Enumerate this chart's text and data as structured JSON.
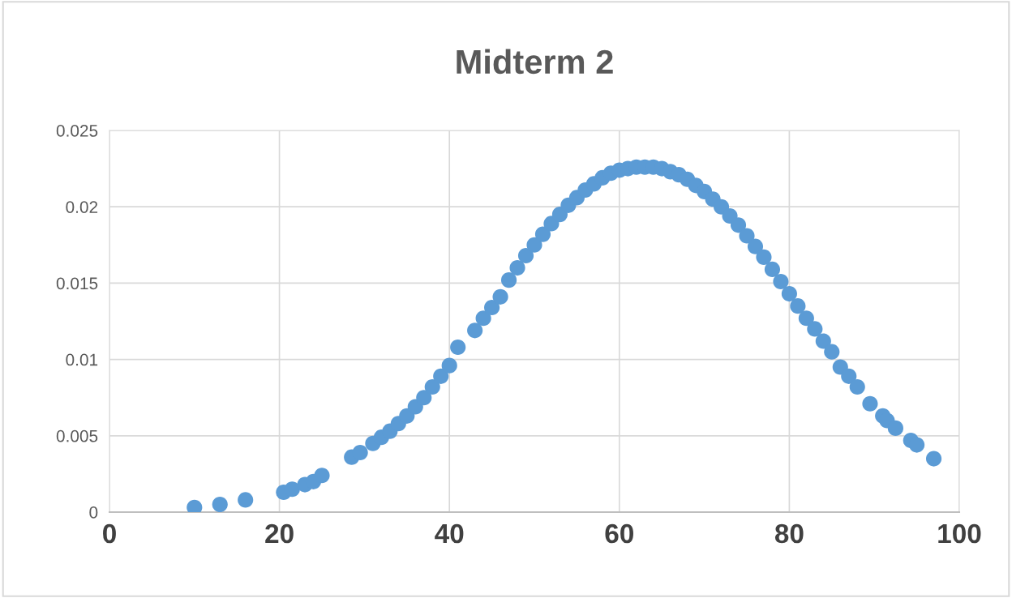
{
  "chart_data": {
    "type": "scatter",
    "title": "Midterm 2",
    "marker": "circle",
    "grid": true,
    "xlim": [
      0,
      100
    ],
    "xticks": [
      0,
      20,
      40,
      60,
      80,
      100
    ],
    "ylim": [
      0,
      0.025
    ],
    "yticks": [
      {
        "value": 0,
        "label": "0"
      },
      {
        "value": 0.005,
        "label": "0.005"
      },
      {
        "value": 0.01,
        "label": "0.01"
      },
      {
        "value": 0.015,
        "label": "0.015"
      },
      {
        "value": 0.02,
        "label": "0.02"
      },
      {
        "value": 0.025,
        "label": "0.025"
      }
    ],
    "series": [
      {
        "color": "#5b9bd5",
        "x": [
          10,
          13,
          16,
          20.5,
          21.5,
          23,
          24,
          25,
          28.5,
          29.5,
          31,
          32,
          33,
          34,
          35,
          36,
          37,
          38,
          39,
          40,
          41,
          43,
          44,
          45,
          46,
          47,
          48,
          49,
          50,
          51,
          52,
          53,
          54,
          55,
          56,
          57,
          58,
          59,
          60,
          61,
          62,
          63,
          64,
          65,
          66,
          67,
          68,
          69,
          70,
          71,
          72,
          73,
          74,
          75,
          76,
          77,
          78,
          79,
          80,
          81,
          82,
          83,
          84,
          85,
          86,
          87,
          88,
          89.5,
          91,
          91.5,
          92.5,
          94.3,
          95,
          97
        ],
        "values": [
          0.0003,
          0.0005,
          0.0008,
          0.0013,
          0.0015,
          0.0018,
          0.002,
          0.0024,
          0.0036,
          0.0039,
          0.0045,
          0.0049,
          0.0053,
          0.0058,
          0.0063,
          0.0069,
          0.0075,
          0.0082,
          0.0089,
          0.0096,
          0.0108,
          0.0119,
          0.0127,
          0.0134,
          0.0141,
          0.0152,
          0.016,
          0.0168,
          0.0175,
          0.0182,
          0.0189,
          0.0195,
          0.0201,
          0.0206,
          0.0211,
          0.0215,
          0.0219,
          0.0222,
          0.0224,
          0.0225,
          0.0226,
          0.0226,
          0.0226,
          0.0225,
          0.0223,
          0.0221,
          0.0218,
          0.0214,
          0.021,
          0.0205,
          0.02,
          0.0194,
          0.0188,
          0.0181,
          0.0174,
          0.0167,
          0.0159,
          0.0151,
          0.0143,
          0.0135,
          0.0127,
          0.012,
          0.0112,
          0.0105,
          0.0095,
          0.0089,
          0.0082,
          0.0071,
          0.0063,
          0.006,
          0.0055,
          0.0047,
          0.0044,
          0.0035
        ]
      }
    ]
  }
}
